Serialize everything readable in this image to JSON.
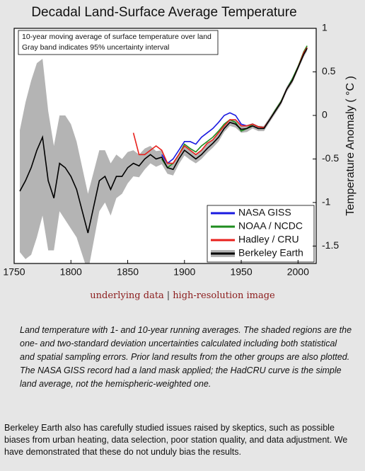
{
  "chart_data": {
    "type": "line",
    "title": "Decadal Land-Surface Average Temperature",
    "ylabel": "Temperature Anomaly ( °C )",
    "annotation": [
      "10-year moving average of surface temperature over land",
      "Gray band indicates 95% uncertainty interval"
    ],
    "xlim": [
      1750,
      2016
    ],
    "xticks": [
      1750,
      1800,
      1850,
      1900,
      1950,
      2000
    ],
    "ylim": [
      -1.7,
      1
    ],
    "yticks": [
      -1.5,
      -1,
      -0.5,
      0,
      0.5,
      1
    ],
    "legend": "lower right",
    "band_color": "#b4b4b4",
    "series": [
      {
        "name": "NASA GISS",
        "color": "#1a1ae0",
        "x": [
          1880,
          1885,
          1890,
          1895,
          1900,
          1905,
          1910,
          1915,
          1920,
          1925,
          1930,
          1935,
          1940,
          1945,
          1950,
          1955,
          1960,
          1965,
          1970,
          1975,
          1980,
          1985,
          1990,
          1995,
          2000,
          2005,
          2008
        ],
        "values": [
          -0.45,
          -0.55,
          -0.5,
          -0.4,
          -0.3,
          -0.3,
          -0.33,
          -0.25,
          -0.2,
          -0.15,
          -0.08,
          0.0,
          0.03,
          0.0,
          -0.1,
          -0.12,
          -0.1,
          -0.13,
          -0.14,
          -0.05,
          0.05,
          0.15,
          0.3,
          0.42,
          0.55,
          0.72,
          0.78
        ]
      },
      {
        "name": "NOAA / NCDC",
        "color": "#1e8c1e",
        "x": [
          1880,
          1885,
          1890,
          1895,
          1900,
          1905,
          1910,
          1915,
          1920,
          1925,
          1930,
          1935,
          1940,
          1945,
          1950,
          1955,
          1960,
          1965,
          1970,
          1975,
          1980,
          1985,
          1990,
          1995,
          2000,
          2005,
          2008
        ],
        "values": [
          -0.5,
          -0.6,
          -0.55,
          -0.45,
          -0.33,
          -0.38,
          -0.42,
          -0.35,
          -0.3,
          -0.25,
          -0.18,
          -0.1,
          -0.05,
          -0.08,
          -0.18,
          -0.15,
          -0.1,
          -0.13,
          -0.14,
          -0.05,
          0.06,
          0.16,
          0.3,
          0.42,
          0.56,
          0.73,
          0.8
        ]
      },
      {
        "name": "Hadley / CRU",
        "color": "#e8201c",
        "x": [
          1855,
          1860,
          1865,
          1870,
          1875,
          1880,
          1885,
          1890,
          1895,
          1900,
          1905,
          1910,
          1915,
          1920,
          1925,
          1930,
          1935,
          1940,
          1945,
          1950,
          1955,
          1960,
          1965,
          1970,
          1975,
          1980,
          1985,
          1990,
          1995,
          2000,
          2005,
          2008
        ],
        "values": [
          -0.2,
          -0.45,
          -0.45,
          -0.4,
          -0.35,
          -0.4,
          -0.55,
          -0.55,
          -0.45,
          -0.35,
          -0.4,
          -0.45,
          -0.4,
          -0.32,
          -0.28,
          -0.2,
          -0.12,
          -0.05,
          -0.05,
          -0.12,
          -0.12,
          -0.1,
          -0.13,
          -0.14,
          -0.05,
          0.05,
          0.15,
          0.3,
          0.4,
          0.55,
          0.72,
          0.78
        ]
      },
      {
        "name": "Berkeley Earth",
        "color": "#000000",
        "x": [
          1755,
          1760,
          1765,
          1770,
          1775,
          1780,
          1785,
          1790,
          1795,
          1800,
          1805,
          1810,
          1815,
          1820,
          1825,
          1830,
          1835,
          1840,
          1845,
          1850,
          1855,
          1860,
          1865,
          1870,
          1875,
          1880,
          1885,
          1890,
          1895,
          1900,
          1905,
          1910,
          1915,
          1920,
          1925,
          1930,
          1935,
          1940,
          1945,
          1950,
          1955,
          1960,
          1965,
          1970,
          1975,
          1980,
          1985,
          1990,
          1995,
          2000,
          2005,
          2008
        ],
        "values": [
          -0.87,
          -0.75,
          -0.6,
          -0.4,
          -0.25,
          -0.75,
          -0.95,
          -0.55,
          -0.6,
          -0.7,
          -0.85,
          -1.1,
          -1.35,
          -1.05,
          -0.75,
          -0.7,
          -0.85,
          -0.7,
          -0.7,
          -0.6,
          -0.55,
          -0.58,
          -0.5,
          -0.45,
          -0.5,
          -0.48,
          -0.6,
          -0.62,
          -0.5,
          -0.4,
          -0.45,
          -0.5,
          -0.45,
          -0.38,
          -0.32,
          -0.25,
          -0.15,
          -0.08,
          -0.1,
          -0.16,
          -0.15,
          -0.12,
          -0.15,
          -0.15,
          -0.05,
          0.05,
          0.15,
          0.3,
          0.4,
          0.55,
          0.7,
          0.77
        ],
        "uncertainty": [
          0.7,
          0.9,
          1.0,
          1.0,
          0.9,
          0.8,
          0.6,
          0.55,
          0.6,
          0.6,
          0.55,
          0.5,
          0.45,
          0.4,
          0.35,
          0.3,
          0.3,
          0.25,
          0.2,
          0.18,
          0.15,
          0.13,
          0.12,
          0.1,
          0.09,
          0.08,
          0.07,
          0.07,
          0.06,
          0.06,
          0.06,
          0.05,
          0.05,
          0.05,
          0.05,
          0.05,
          0.04,
          0.04,
          0.04,
          0.04,
          0.04,
          0.03,
          0.03,
          0.03,
          0.03,
          0.03,
          0.03,
          0.03,
          0.03,
          0.03,
          0.03,
          0.03
        ]
      }
    ]
  },
  "links": [
    "underlying data",
    "high-resolution image"
  ],
  "link_separator": "|",
  "caption": "Land temperature with 1- and 10-year running averages. The shaded regions are the one- and two-standard deviation uncertainties calculated including both statistical and spatial sampling errors. Prior land results from the other groups are also plotted. The NASA GISS record had a land mask applied; the HadCRU curve is the simple land average, not the hemispheric-weighted one.",
  "body": "Berkeley Earth also has carefully studied issues raised by skeptics, such as possible biases from urban heating, data selection, poor station quality, and data adjustment. We have demonstrated that these do not unduly bias the results."
}
